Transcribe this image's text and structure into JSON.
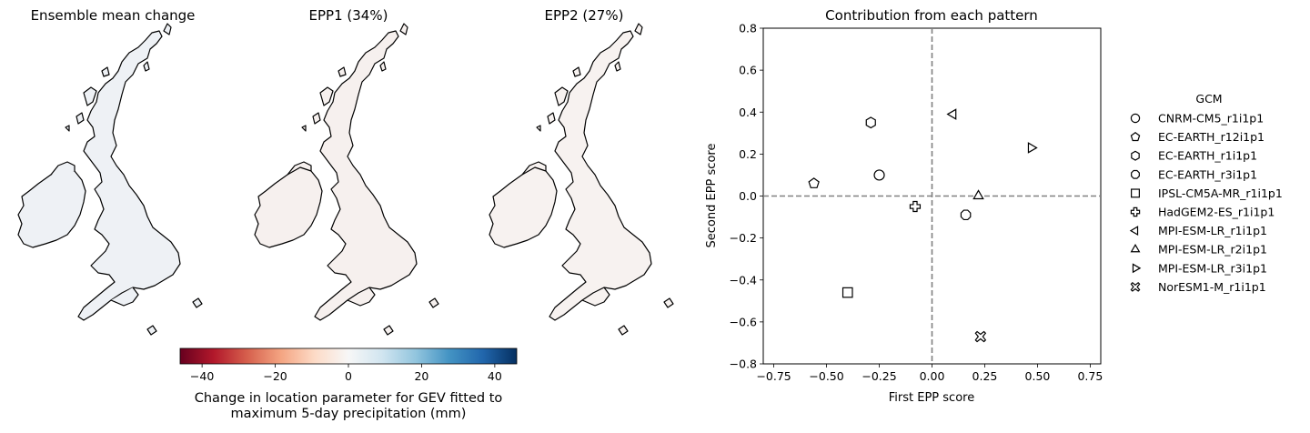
{
  "maps": {
    "panels": [
      {
        "title": "Ensemble mean change",
        "style": "neutral"
      },
      {
        "title": "EPP1 (34%)",
        "style": "epp1"
      },
      {
        "title": "EPP2 (27%)",
        "style": "epp2"
      }
    ],
    "colorbar": {
      "colormap": "RdBu",
      "min": -46,
      "max": 46,
      "ticks": [
        "−40",
        "−20",
        "0",
        "20",
        "40"
      ],
      "tick_values": [
        -40,
        -20,
        0,
        20,
        40
      ],
      "label_line1": "Change in location parameter for GEV fitted to",
      "label_line2": "maximum 5-day precipitation (mm)"
    }
  },
  "chart_data": {
    "type": "scatter",
    "title": "Contribution from each pattern",
    "xlabel": "First EPP score",
    "ylabel": "Second EPP score",
    "xlim": [
      -0.8,
      0.8
    ],
    "ylim": [
      -0.8,
      0.8
    ],
    "xticks": [
      -0.75,
      -0.5,
      -0.25,
      0.0,
      0.25,
      0.5,
      0.75
    ],
    "xtick_labels": [
      "−0.75",
      "−0.50",
      "−0.25",
      "0.00",
      "0.25",
      "0.50",
      "0.75"
    ],
    "yticks": [
      -0.8,
      -0.6,
      -0.4,
      -0.2,
      0.0,
      0.2,
      0.4,
      0.6,
      0.8
    ],
    "ytick_labels": [
      "−0.8",
      "−0.6",
      "−0.4",
      "−0.2",
      "0.0",
      "0.2",
      "0.4",
      "0.6",
      "0.8"
    ],
    "reference_lines": {
      "x": 0,
      "y": 0,
      "style": "dashed",
      "color": "#808080"
    },
    "legend_title": "GCM",
    "legend_position": "right",
    "points": [
      {
        "label": "CNRM-CM5_r1i1p1",
        "marker": "circle",
        "x": -0.25,
        "y": 0.1
      },
      {
        "label": "EC-EARTH_r12i1p1",
        "marker": "pentagon",
        "x": -0.56,
        "y": 0.06
      },
      {
        "label": "EC-EARTH_r1i1p1",
        "marker": "hexagon",
        "x": -0.29,
        "y": 0.35
      },
      {
        "label": "EC-EARTH_r3i1p1",
        "marker": "octagon",
        "x": 0.16,
        "y": -0.09
      },
      {
        "label": "IPSL-CM5A-MR_r1i1p1",
        "marker": "square",
        "x": -0.4,
        "y": -0.46
      },
      {
        "label": "HadGEM2-ES_r1i1p1",
        "marker": "plus",
        "x": -0.08,
        "y": -0.05
      },
      {
        "label": "MPI-ESM-LR_r1i1p1",
        "marker": "triangle-left",
        "x": 0.1,
        "y": 0.39
      },
      {
        "label": "MPI-ESM-LR_r2i1p1",
        "marker": "triangle-up",
        "x": 0.22,
        "y": 0.0
      },
      {
        "label": "MPI-ESM-LR_r3i1p1",
        "marker": "triangle-right",
        "x": 0.47,
        "y": 0.23
      },
      {
        "label": "NorESM1-M_r1i1p1",
        "marker": "x-filled",
        "x": 0.23,
        "y": -0.67
      }
    ]
  }
}
